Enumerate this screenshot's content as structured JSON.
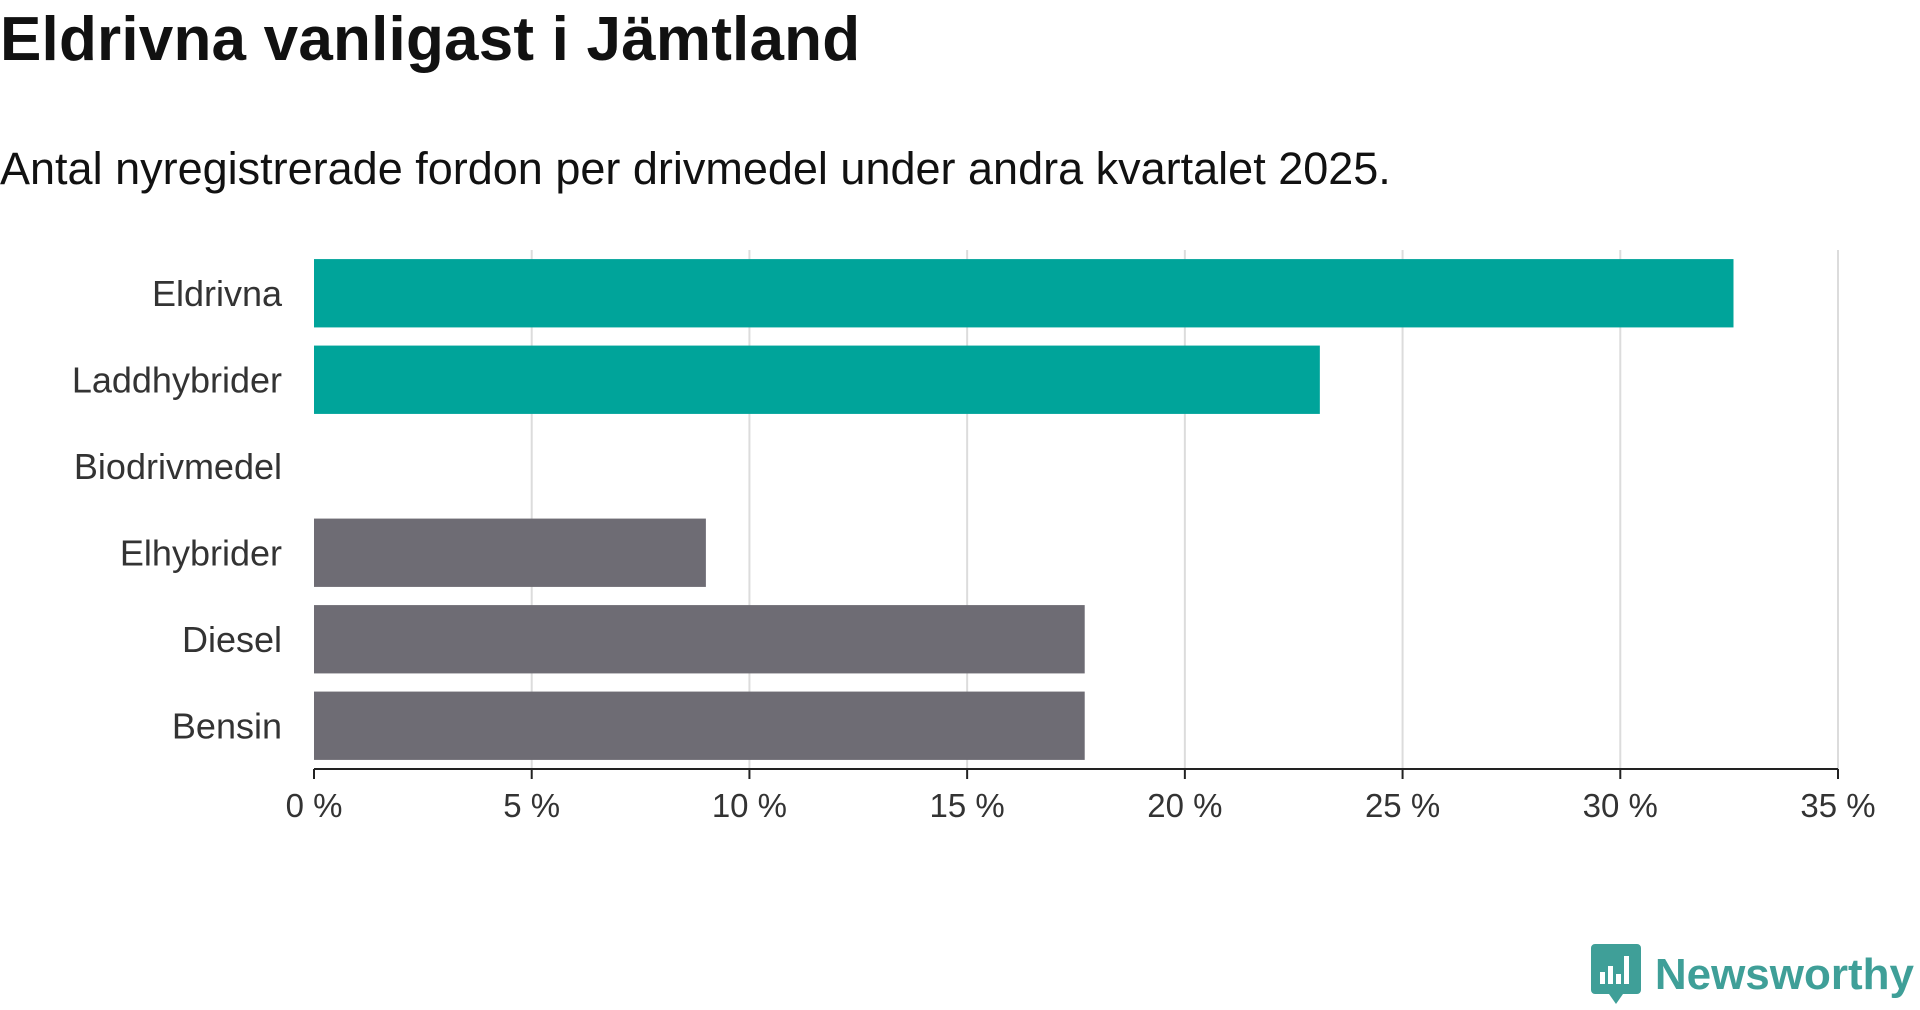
{
  "header": {
    "title": "Eldrivna vanligast i Jämtland",
    "subtitle": "Antal nyregistrerade fordon per drivmedel under andra kvartalet 2025."
  },
  "chart_data": {
    "type": "bar",
    "orientation": "horizontal",
    "title": "Eldrivna vanligast i Jämtland",
    "subtitle": "Antal nyregistrerade fordon per drivmedel under andra kvartalet 2025.",
    "xlabel": "",
    "ylabel": "",
    "categories": [
      "Eldrivna",
      "Laddhybrider",
      "Biodrivmedel",
      "Elhybrider",
      "Diesel",
      "Bensin"
    ],
    "values": [
      32.6,
      23.1,
      0,
      9.0,
      17.7,
      17.7
    ],
    "value_unit": "%",
    "bar_colors": [
      "#00a49a",
      "#00a49a",
      "#00a49a",
      "#6e6c74",
      "#6e6c74",
      "#6e6c74"
    ],
    "xlim": [
      0,
      35
    ],
    "xticks": [
      0,
      5,
      10,
      15,
      20,
      25,
      30,
      35
    ],
    "xtick_labels": [
      "0 %",
      "5 %",
      "10 %",
      "15 %",
      "20 %",
      "25 %",
      "30 %",
      "35 %"
    ],
    "grid": "vertical",
    "legend": "none"
  },
  "branding": {
    "logo_text": "Newsworthy",
    "logo_icon": "newsworthy-chart-icon",
    "color": "#3f9f98"
  }
}
